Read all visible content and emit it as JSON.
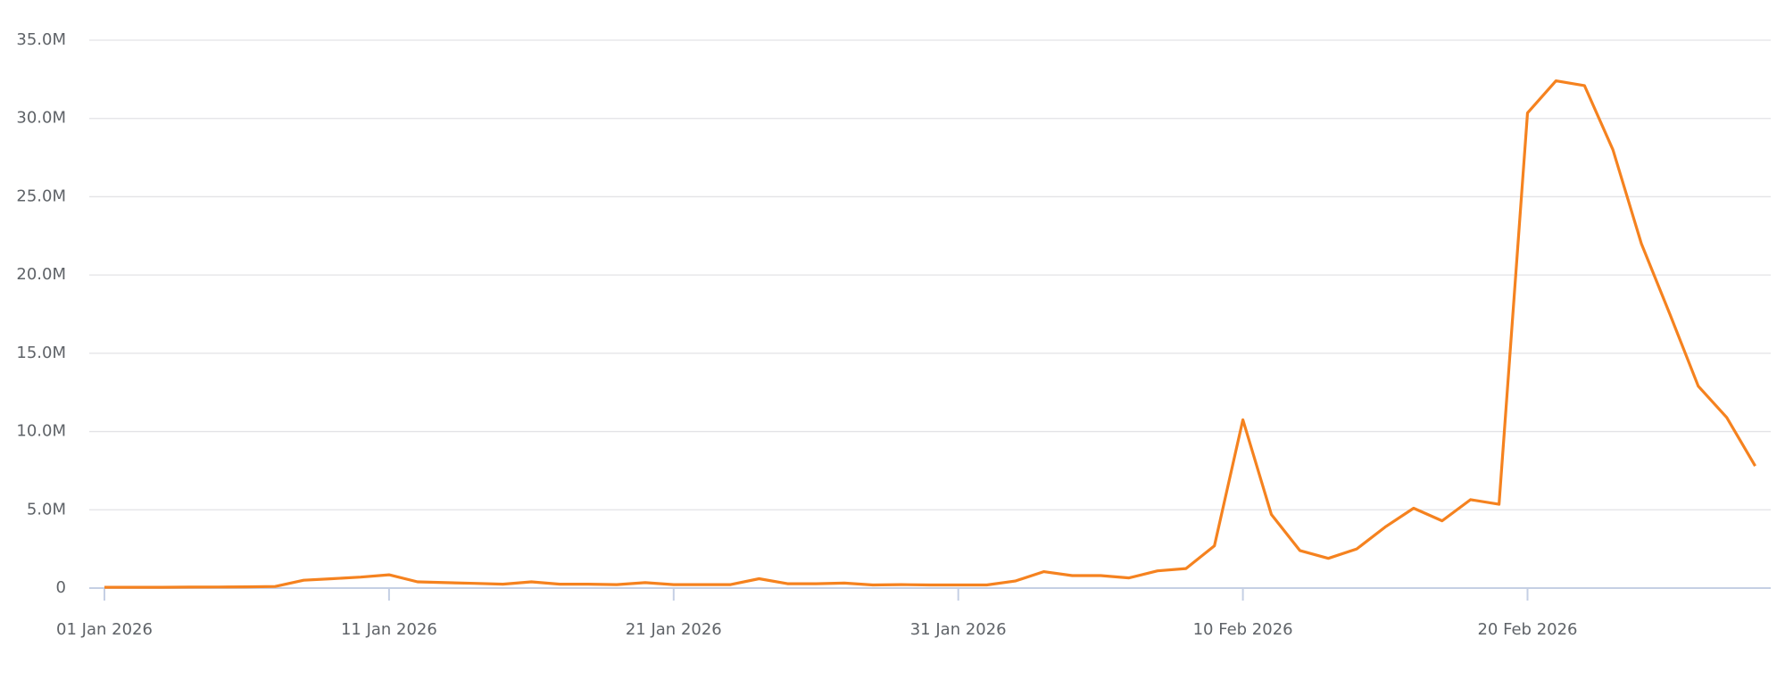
{
  "chart_data": {
    "type": "line",
    "x": [
      "2026-01-01",
      "2026-01-02",
      "2026-01-03",
      "2026-01-04",
      "2026-01-05",
      "2026-01-06",
      "2026-01-07",
      "2026-01-08",
      "2026-01-09",
      "2026-01-10",
      "2026-01-11",
      "2026-01-12",
      "2026-01-13",
      "2026-01-14",
      "2026-01-15",
      "2026-01-16",
      "2026-01-17",
      "2026-01-18",
      "2026-01-19",
      "2026-01-20",
      "2026-01-21",
      "2026-01-22",
      "2026-01-23",
      "2026-01-24",
      "2026-01-25",
      "2026-01-26",
      "2026-01-27",
      "2026-01-28",
      "2026-01-29",
      "2026-01-30",
      "2026-01-31",
      "2026-02-01",
      "2026-02-02",
      "2026-02-03",
      "2026-02-04",
      "2026-02-05",
      "2026-02-06",
      "2026-02-07",
      "2026-02-08",
      "2026-02-09",
      "2026-02-10",
      "2026-02-11",
      "2026-02-12",
      "2026-02-13",
      "2026-02-14",
      "2026-02-15",
      "2026-02-16",
      "2026-02-17",
      "2026-02-18",
      "2026-02-19",
      "2026-02-20",
      "2026-02-21",
      "2026-02-22",
      "2026-02-23",
      "2026-02-24",
      "2026-02-25",
      "2026-02-26",
      "2026-02-27",
      "2026-02-28"
    ],
    "series": [
      {
        "color": "#f5821f",
        "values": [
          0.05,
          0.05,
          0.05,
          0.06,
          0.07,
          0.08,
          0.1,
          0.5,
          0.6,
          0.7,
          0.85,
          0.4,
          0.35,
          0.3,
          0.25,
          0.4,
          0.25,
          0.25,
          0.22,
          0.35,
          0.22,
          0.22,
          0.22,
          0.6,
          0.28,
          0.28,
          0.32,
          0.2,
          0.22,
          0.2,
          0.2,
          0.2,
          0.45,
          1.05,
          0.8,
          0.8,
          0.65,
          1.1,
          1.25,
          2.7,
          10.75,
          4.7,
          2.4,
          1.9,
          2.5,
          3.9,
          5.1,
          4.3,
          5.65,
          5.35,
          30.35,
          32.4,
          32.1,
          28.0,
          22.0,
          17.5,
          12.9,
          10.9,
          7.8
        ]
      }
    ],
    "ylim": [
      0,
      35
    ],
    "yticks": [
      0,
      {
        "value": 5,
        "label": "5.0M"
      },
      {
        "value": 10,
        "label": "10.0M"
      },
      {
        "value": 15,
        "label": "15.0M"
      },
      {
        "value": 20,
        "label": "20.0M"
      },
      {
        "value": 25,
        "label": "25.0M"
      },
      {
        "value": 30,
        "label": "30.0M"
      },
      {
        "value": 35,
        "label": "35.0M"
      }
    ],
    "xticks": [
      {
        "value": "2026-01-01",
        "label": "01 Jan 2026"
      },
      {
        "value": "2026-01-11",
        "label": "11 Jan 2026"
      },
      {
        "value": "2026-01-21",
        "label": "21 Jan 2026"
      },
      {
        "value": "2026-01-31",
        "label": "31 Jan 2026"
      },
      {
        "value": "2026-02-10",
        "label": "10 Feb 2026"
      },
      {
        "value": "2026-02-20",
        "label": "20 Feb 2026"
      }
    ],
    "grid": true
  }
}
